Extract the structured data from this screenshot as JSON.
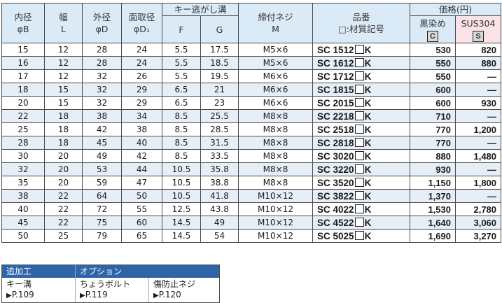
{
  "headers": {
    "inner": [
      "内径",
      "φB"
    ],
    "width": [
      "幅",
      "L"
    ],
    "outer": [
      "外径",
      "φD"
    ],
    "chamfer": [
      "面取径",
      "φD₁"
    ],
    "groove": "キー逃がし溝",
    "f": "F",
    "g": "G",
    "screw": [
      "締付ネジ",
      "M"
    ],
    "part": [
      "品番",
      "□:材質記号"
    ],
    "price": "価格(円)",
    "black": "黒染め",
    "black_code": "C",
    "sus": "SUS304",
    "sus_code": "S"
  },
  "rows": [
    {
      "b": "15",
      "l": "12",
      "d": "28",
      "d1": "24",
      "f": "5.5",
      "g": "17.5",
      "m": "M5×6",
      "pre": "SC 1512",
      "suf": "K",
      "c": "530",
      "s": "820"
    },
    {
      "b": "16",
      "l": "12",
      "d": "28",
      "d1": "24",
      "f": "5.5",
      "g": "18.5",
      "m": "M5×6",
      "pre": "SC 1612",
      "suf": "K",
      "c": "550",
      "s": "880"
    },
    {
      "b": "17",
      "l": "12",
      "d": "32",
      "d1": "26",
      "f": "5.5",
      "g": "19.5",
      "m": "M6×6",
      "pre": "SC 1712",
      "suf": "K",
      "c": "550",
      "s": "—"
    },
    {
      "b": "18",
      "l": "15",
      "d": "32",
      "d1": "29",
      "f": "6.5",
      "g": "21",
      "m": "M6×6",
      "pre": "SC 1815",
      "suf": "K",
      "c": "600",
      "s": "—"
    },
    {
      "b": "20",
      "l": "15",
      "d": "32",
      "d1": "29",
      "f": "6.5",
      "g": "23",
      "m": "M6×6",
      "pre": "SC 2015",
      "suf": "K",
      "c": "600",
      "s": "930"
    },
    {
      "b": "22",
      "l": "18",
      "d": "38",
      "d1": "34",
      "f": "8.5",
      "g": "25.5",
      "m": "M8×8",
      "pre": "SC 2218",
      "suf": "K",
      "c": "710",
      "s": "—"
    },
    {
      "b": "25",
      "l": "18",
      "d": "42",
      "d1": "38",
      "f": "8.5",
      "g": "28.5",
      "m": "M8×8",
      "pre": "SC 2518",
      "suf": "K",
      "c": "770",
      "s": "1,200"
    },
    {
      "b": "28",
      "l": "18",
      "d": "45",
      "d1": "40",
      "f": "8.5",
      "g": "31.5",
      "m": "M8×8",
      "pre": "SC 2818",
      "suf": "K",
      "c": "770",
      "s": "—"
    },
    {
      "b": "30",
      "l": "20",
      "d": "49",
      "d1": "42",
      "f": "8.5",
      "g": "33.5",
      "m": "M8×8",
      "pre": "SC 3020",
      "suf": "K",
      "c": "880",
      "s": "1,480"
    },
    {
      "b": "32",
      "l": "20",
      "d": "53",
      "d1": "44",
      "f": "10.5",
      "g": "35.8",
      "m": "M8×8",
      "pre": "SC 3220",
      "suf": "K",
      "c": "930",
      "s": "—"
    },
    {
      "b": "35",
      "l": "20",
      "d": "59",
      "d1": "47",
      "f": "10.5",
      "g": "38.8",
      "m": "M8×8",
      "pre": "SC 3520",
      "suf": "K",
      "c": "1,150",
      "s": "1,800"
    },
    {
      "b": "38",
      "l": "22",
      "d": "64",
      "d1": "50",
      "f": "10.5",
      "g": "41.8",
      "m": "M10×12",
      "pre": "SC 3822",
      "suf": "K",
      "c": "1,370",
      "s": "—"
    },
    {
      "b": "40",
      "l": "22",
      "d": "72",
      "d1": "55",
      "f": "12.5",
      "g": "43.8",
      "m": "M10×12",
      "pre": "SC 4022",
      "suf": "K",
      "c": "1,530",
      "s": "2,780"
    },
    {
      "b": "45",
      "l": "22",
      "d": "75",
      "d1": "60",
      "f": "14.5",
      "g": "49",
      "m": "M10×12",
      "pre": "SC 4522",
      "suf": "K",
      "c": "1,640",
      "s": "3,060"
    },
    {
      "b": "50",
      "l": "25",
      "d": "79",
      "d1": "65",
      "f": "14.5",
      "g": "54",
      "m": "M10×12",
      "pre": "SC 5025",
      "suf": "K",
      "c": "1,690",
      "s": "3,270"
    }
  ],
  "footer": {
    "extra": "追加工",
    "option": "オプション",
    "items": [
      {
        "label": "キー溝",
        "ref": "P.109"
      },
      {
        "label": "ちょうボルト",
        "ref": "P.119"
      },
      {
        "label": "傷防止ネジ",
        "ref": "P.120"
      }
    ]
  }
}
